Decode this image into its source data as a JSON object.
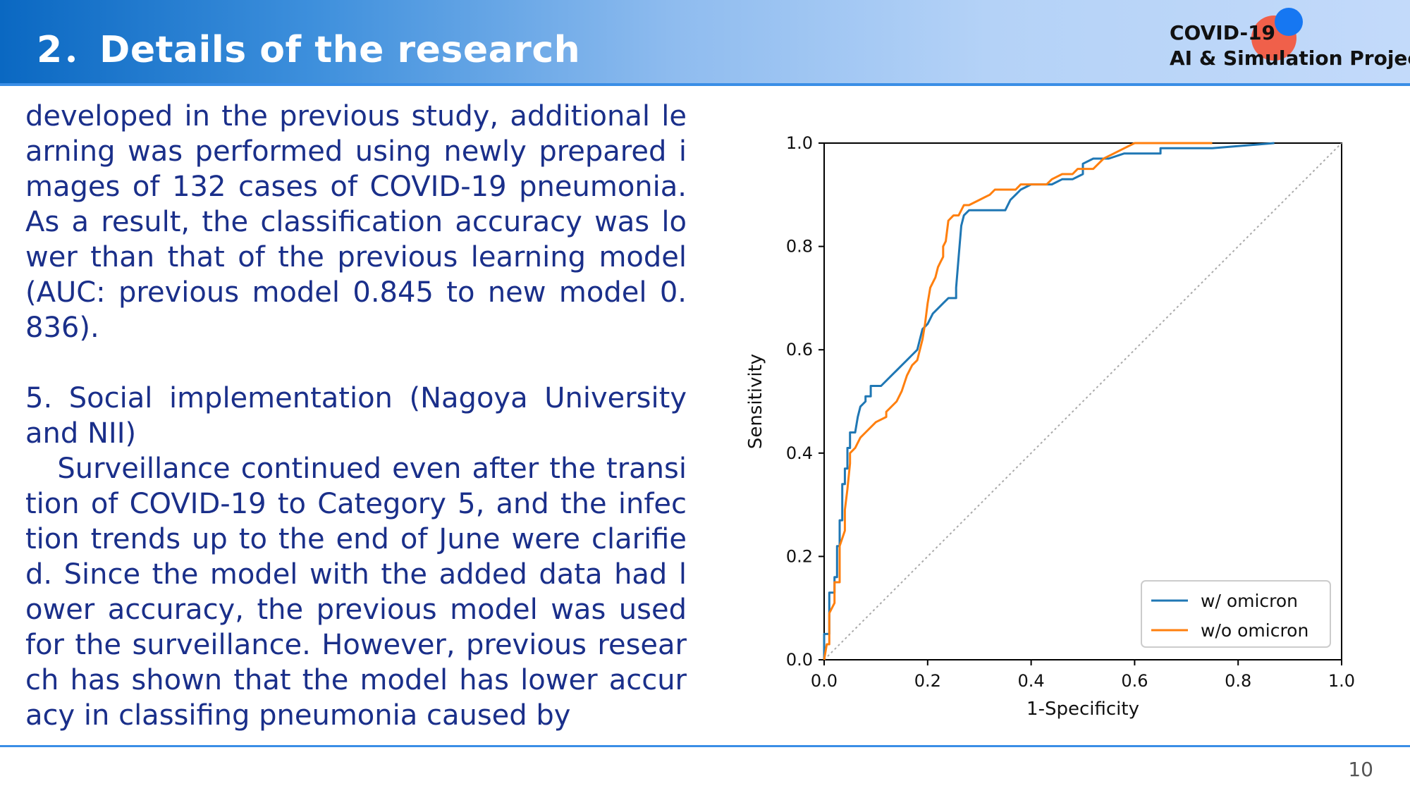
{
  "header": {
    "title": "2．Details of the research",
    "logo_line1": "COVID-19",
    "logo_line2": "AI & Simulation Project"
  },
  "body_text": {
    "lines": [
      "developed in the previous study, additional le",
      "arning was performed using newly prepared i",
      "mages of 132 cases of COVID-19 pneumonia.",
      "As a result, the classification accuracy was lo",
      "wer than that of the previous learning model",
      "(AUC: previous model 0.845 to new model 0.",
      "836).",
      "",
      "5. Social implementation (Nagoya University",
      "and NII)",
      "   Surveillance continued even after the transi",
      "tion of COVID-19 to Category 5, and the infec",
      "tion trends up to the end of June were clarifie",
      "d. Since the model with the added data had l",
      "ower accuracy, the previous model was used",
      "for the surveillance. However, previous resear",
      "ch has shown that the model has lower accur",
      "acy in classifing pneumonia caused by"
    ]
  },
  "footer": {
    "page_number": "10"
  },
  "chart_data": {
    "type": "line",
    "title": "",
    "xlabel": "1-Specificity",
    "ylabel": "Sensitivity",
    "xlim": [
      0.0,
      1.0
    ],
    "ylim": [
      0.0,
      1.0
    ],
    "x_ticks": [
      "0.0",
      "0.2",
      "0.4",
      "0.6",
      "0.8",
      "1.0"
    ],
    "y_ticks": [
      "0.0",
      "0.2",
      "0.4",
      "0.6",
      "0.8",
      "1.0"
    ],
    "grid": false,
    "legend_position": "lower-right",
    "diagonal_reference": {
      "x": [
        0,
        1
      ],
      "y": [
        0,
        1
      ],
      "style": "dotted",
      "color": "#aaaaaa"
    },
    "series": [
      {
        "name": "w/ omicron",
        "color": "#1f77b4",
        "points": [
          [
            0.0,
            0.0
          ],
          [
            0.0,
            0.05
          ],
          [
            0.01,
            0.05
          ],
          [
            0.01,
            0.13
          ],
          [
            0.02,
            0.13
          ],
          [
            0.02,
            0.16
          ],
          [
            0.025,
            0.16
          ],
          [
            0.025,
            0.22
          ],
          [
            0.03,
            0.22
          ],
          [
            0.03,
            0.27
          ],
          [
            0.035,
            0.27
          ],
          [
            0.035,
            0.34
          ],
          [
            0.04,
            0.34
          ],
          [
            0.04,
            0.37
          ],
          [
            0.045,
            0.37
          ],
          [
            0.045,
            0.41
          ],
          [
            0.05,
            0.41
          ],
          [
            0.05,
            0.44
          ],
          [
            0.06,
            0.44
          ],
          [
            0.065,
            0.47
          ],
          [
            0.07,
            0.49
          ],
          [
            0.08,
            0.5
          ],
          [
            0.08,
            0.51
          ],
          [
            0.09,
            0.51
          ],
          [
            0.09,
            0.53
          ],
          [
            0.11,
            0.53
          ],
          [
            0.13,
            0.55
          ],
          [
            0.14,
            0.56
          ],
          [
            0.15,
            0.57
          ],
          [
            0.16,
            0.58
          ],
          [
            0.17,
            0.59
          ],
          [
            0.18,
            0.6
          ],
          [
            0.19,
            0.64
          ],
          [
            0.2,
            0.65
          ],
          [
            0.21,
            0.67
          ],
          [
            0.22,
            0.68
          ],
          [
            0.23,
            0.69
          ],
          [
            0.24,
            0.7
          ],
          [
            0.255,
            0.7
          ],
          [
            0.255,
            0.72
          ],
          [
            0.26,
            0.78
          ],
          [
            0.265,
            0.84
          ],
          [
            0.27,
            0.86
          ],
          [
            0.28,
            0.87
          ],
          [
            0.35,
            0.87
          ],
          [
            0.36,
            0.89
          ],
          [
            0.37,
            0.9
          ],
          [
            0.38,
            0.91
          ],
          [
            0.4,
            0.92
          ],
          [
            0.44,
            0.92
          ],
          [
            0.46,
            0.93
          ],
          [
            0.48,
            0.93
          ],
          [
            0.5,
            0.94
          ],
          [
            0.5,
            0.96
          ],
          [
            0.52,
            0.97
          ],
          [
            0.55,
            0.97
          ],
          [
            0.58,
            0.98
          ],
          [
            0.6,
            0.98
          ],
          [
            0.65,
            0.98
          ],
          [
            0.65,
            0.99
          ],
          [
            0.75,
            0.99
          ],
          [
            0.87,
            1.0
          ]
        ]
      },
      {
        "name": "w/o omicron",
        "color": "#ff7f0e",
        "points": [
          [
            0.0,
            0.0
          ],
          [
            0.005,
            0.03
          ],
          [
            0.01,
            0.03
          ],
          [
            0.01,
            0.09
          ],
          [
            0.02,
            0.11
          ],
          [
            0.02,
            0.15
          ],
          [
            0.03,
            0.15
          ],
          [
            0.03,
            0.22
          ],
          [
            0.04,
            0.25
          ],
          [
            0.04,
            0.29
          ],
          [
            0.045,
            0.33
          ],
          [
            0.05,
            0.38
          ],
          [
            0.05,
            0.4
          ],
          [
            0.06,
            0.41
          ],
          [
            0.07,
            0.43
          ],
          [
            0.08,
            0.44
          ],
          [
            0.1,
            0.46
          ],
          [
            0.12,
            0.47
          ],
          [
            0.12,
            0.48
          ],
          [
            0.14,
            0.5
          ],
          [
            0.15,
            0.52
          ],
          [
            0.16,
            0.55
          ],
          [
            0.17,
            0.57
          ],
          [
            0.18,
            0.58
          ],
          [
            0.19,
            0.62
          ],
          [
            0.195,
            0.65
          ],
          [
            0.2,
            0.69
          ],
          [
            0.205,
            0.72
          ],
          [
            0.21,
            0.73
          ],
          [
            0.215,
            0.74
          ],
          [
            0.22,
            0.76
          ],
          [
            0.225,
            0.77
          ],
          [
            0.23,
            0.78
          ],
          [
            0.23,
            0.8
          ],
          [
            0.235,
            0.81
          ],
          [
            0.24,
            0.85
          ],
          [
            0.25,
            0.86
          ],
          [
            0.26,
            0.86
          ],
          [
            0.27,
            0.88
          ],
          [
            0.28,
            0.88
          ],
          [
            0.3,
            0.89
          ],
          [
            0.32,
            0.9
          ],
          [
            0.33,
            0.91
          ],
          [
            0.37,
            0.91
          ],
          [
            0.38,
            0.92
          ],
          [
            0.43,
            0.92
          ],
          [
            0.44,
            0.93
          ],
          [
            0.46,
            0.94
          ],
          [
            0.48,
            0.94
          ],
          [
            0.49,
            0.95
          ],
          [
            0.52,
            0.95
          ],
          [
            0.54,
            0.97
          ],
          [
            0.56,
            0.98
          ],
          [
            0.58,
            0.99
          ],
          [
            0.6,
            1.0
          ],
          [
            0.75,
            1.0
          ]
        ]
      }
    ]
  }
}
